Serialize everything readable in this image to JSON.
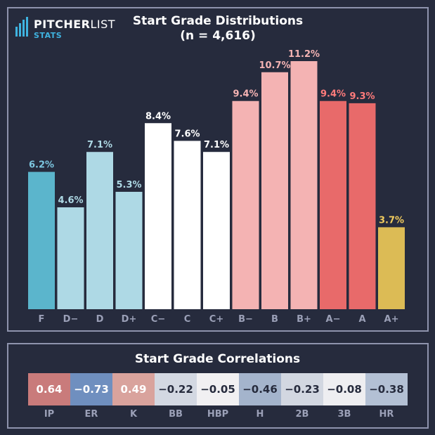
{
  "logo": {
    "name_bold": "PITCHER",
    "name_light": "LIST",
    "sub": "STATS",
    "icon": "bar-logo-icon"
  },
  "colors": {
    "background": "#262b3d",
    "frame": "#8e93ad",
    "f_bar": "#5bb5cc",
    "d_bar": "#aed9e5",
    "c_bar": "#ffffff",
    "b_bar": "#f4b3b3",
    "a_bar": "#e86a6a",
    "a_plus_bar": "#dcbb55",
    "axis_label": "#9ba0b7"
  },
  "chart_data": [
    {
      "type": "bar",
      "title": "Start Grade Distributions",
      "subtitle": "(n = 4,616)",
      "xlabel": "",
      "ylabel": "",
      "categories": [
        "F",
        "D−",
        "D",
        "D+",
        "C−",
        "C",
        "C+",
        "B−",
        "B",
        "B+",
        "A−",
        "A",
        "A+"
      ],
      "values": [
        6.2,
        4.6,
        7.1,
        5.3,
        8.4,
        7.6,
        7.1,
        9.4,
        10.7,
        11.2,
        9.4,
        9.3,
        3.7
      ],
      "data_labels": [
        "6.2%",
        "4.6%",
        "7.1%",
        "5.3%",
        "8.4%",
        "7.6%",
        "7.1%",
        "9.4%",
        "10.7%",
        "11.2%",
        "9.4%",
        "9.3%",
        "3.7%"
      ],
      "bar_colors": [
        "#5bb5cc",
        "#aed9e5",
        "#aed9e5",
        "#aed9e5",
        "#ffffff",
        "#ffffff",
        "#ffffff",
        "#f4b3b3",
        "#f4b3b3",
        "#f4b3b3",
        "#e86a6a",
        "#e86a6a",
        "#dcbb55"
      ],
      "label_colors": [
        "#7cc6e0",
        "#aed9e5",
        "#aed9e5",
        "#aed9e5",
        "#ffffff",
        "#ffffff",
        "#ffffff",
        "#f4b3b3",
        "#f4b3b3",
        "#f4b3b3",
        "#ff7b7b",
        "#ff7b7b",
        "#f2cc5e"
      ],
      "ylim": [
        0,
        11.2
      ],
      "grid": false,
      "legend": "none"
    },
    {
      "type": "heatmap",
      "title": "Start Grade Correlations",
      "categories": [
        "IP",
        "ER",
        "K",
        "BB",
        "HBP",
        "H",
        "2B",
        "3B",
        "HR"
      ],
      "values": [
        0.64,
        -0.73,
        0.49,
        -0.22,
        -0.05,
        -0.46,
        -0.23,
        -0.08,
        -0.38
      ],
      "value_labels": [
        "0.64",
        "−0.73",
        "0.49",
        "−0.22",
        "−0.05",
        "−0.46",
        "−0.23",
        "−0.08",
        "−0.38"
      ],
      "cell_colors": [
        "#c97b7b",
        "#6f8fbf",
        "#d9a39d",
        "#d3d8e2",
        "#f1f0f2",
        "#a4b4cc",
        "#d2d7e1",
        "#eeeef1",
        "#b3c0d4"
      ],
      "text_colors": [
        "#ffffff",
        "#ffffff",
        "#ffffff",
        "#262b3d",
        "#262b3d",
        "#262b3d",
        "#262b3d",
        "#262b3d",
        "#262b3d"
      ]
    }
  ]
}
